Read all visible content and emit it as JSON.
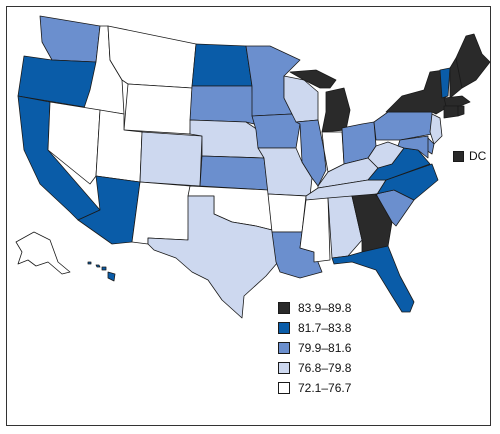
{
  "colors": {
    "class1": "#2a2a2a",
    "class2": "#0a5ca8",
    "class3": "#6b8fce",
    "class4": "#cdd8ef",
    "class5": "#ffffff"
  },
  "legend": [
    {
      "label": "83.9–89.8",
      "class": "class1"
    },
    {
      "label": "81.7–83.8",
      "class": "class2"
    },
    {
      "label": "79.9–81.6",
      "class": "class3"
    },
    {
      "label": "76.8–79.8",
      "class": "class4"
    },
    {
      "label": "72.1–76.7",
      "class": "class5"
    }
  ],
  "dc": {
    "label": "DC",
    "class": "class1"
  },
  "states": {
    "WA": "class3",
    "OR": "class2",
    "CA": "class2",
    "ID": "class5",
    "NV": "class5",
    "MT": "class5",
    "WY": "class5",
    "UT": "class5",
    "CO": "class4",
    "AZ": "class2",
    "NM": "class5",
    "ND": "class2",
    "SD": "class3",
    "NE": "class4",
    "KS": "class3",
    "OK": "class5",
    "TX": "class4",
    "MN": "class3",
    "IA": "class3",
    "MO": "class4",
    "AR": "class5",
    "LA": "class3",
    "WI": "class4",
    "IL": "class3",
    "MI": "class1",
    "IN": "class5",
    "OH": "class3",
    "KY": "class4",
    "TN": "class4",
    "MS": "class5",
    "AL": "class4",
    "GA": "class1",
    "FL": "class2",
    "SC": "class3",
    "NC": "class2",
    "VA": "class2",
    "WV": "class4",
    "PA": "class3",
    "NY": "class1",
    "VT": "class2",
    "NH": "class1",
    "ME": "class1",
    "MA": "class1",
    "CT": "class1",
    "RI": "class1",
    "NJ": "class4",
    "DE": "class3",
    "MD": "class3",
    "AK": "class5",
    "HI": "class2"
  }
}
